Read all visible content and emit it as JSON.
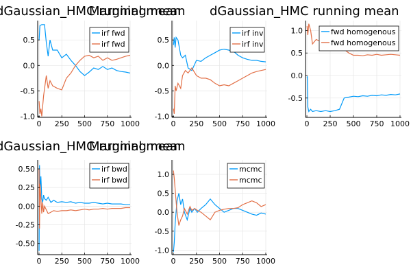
{
  "colors": {
    "series1": "#009af9",
    "series2": "#e26f46",
    "grid": "#e6e6e6",
    "axis": "#000000"
  },
  "chart_data": [
    {
      "type": "line",
      "title": "dGaussian_HMC running mean",
      "xlim": [
        -15,
        1015
      ],
      "ylim": [
        -1.02,
        0.88
      ],
      "xticks": [
        0,
        250,
        500,
        750,
        1000
      ],
      "xtick_labels": [
        "0",
        "250",
        "500",
        "750",
        "1000"
      ],
      "yticks": [
        -1.0,
        -0.5,
        0.0,
        0.5
      ],
      "ytick_labels": [
        "-1.0",
        "-0.5",
        "0.0",
        "0.5"
      ],
      "legend_position": "top-right",
      "grid": true,
      "series": [
        {
          "name": "irf fwd",
          "color": "#009af9",
          "x": [
            1,
            10,
            30,
            60,
            80,
            100,
            120,
            150,
            200,
            250,
            300,
            350,
            400,
            450,
            500,
            550,
            600,
            650,
            700,
            750,
            800,
            850,
            900,
            950,
            1000
          ],
          "y": [
            0.5,
            0.78,
            0.8,
            0.8,
            0.45,
            0.18,
            0.5,
            0.3,
            0.3,
            0.15,
            0.22,
            0.1,
            0.0,
            -0.12,
            -0.2,
            -0.13,
            -0.05,
            -0.08,
            -0.02,
            -0.08,
            -0.05,
            -0.1,
            -0.12,
            -0.13,
            -0.15
          ]
        },
        {
          "name": "irf fwd",
          "color": "#e26f46",
          "x": [
            1,
            10,
            20,
            30,
            50,
            80,
            100,
            120,
            150,
            200,
            250,
            300,
            350,
            400,
            450,
            500,
            550,
            600,
            650,
            700,
            750,
            800,
            850,
            900,
            950,
            1000
          ],
          "y": [
            -0.7,
            -0.95,
            -0.85,
            -1.0,
            -0.6,
            -0.2,
            -0.45,
            -0.3,
            -0.4,
            -0.45,
            -0.48,
            -0.25,
            -0.15,
            0.0,
            0.1,
            0.18,
            0.2,
            0.15,
            0.18,
            0.1,
            0.15,
            0.1,
            0.12,
            0.15,
            0.18,
            0.2
          ]
        }
      ]
    },
    {
      "type": "line",
      "title": "Marginal mean",
      "xlim": [
        -15,
        1015
      ],
      "ylim": [
        -1.02,
        0.88
      ],
      "xticks": [
        0,
        250,
        500,
        750,
        1000
      ],
      "xtick_labels": [
        "0",
        "250",
        "500",
        "750",
        "1000"
      ],
      "yticks": [
        -1.0,
        -0.5,
        0.0,
        0.5
      ],
      "ytick_labels": [
        "-1.0",
        "-0.5",
        "0.0",
        "0.5"
      ],
      "legend_position": "top-right",
      "grid": true,
      "series": [
        {
          "name": "irf inv",
          "color": "#009af9",
          "x": [
            1,
            10,
            20,
            30,
            50,
            80,
            100,
            130,
            160,
            200,
            250,
            300,
            350,
            400,
            450,
            500,
            550,
            600,
            650,
            700,
            750,
            800,
            850,
            900,
            950,
            1000
          ],
          "y": [
            0.4,
            0.55,
            0.35,
            0.55,
            0.5,
            0.2,
            0.15,
            0.2,
            -0.05,
            -0.1,
            0.1,
            0.08,
            0.15,
            0.2,
            0.25,
            0.3,
            0.32,
            0.3,
            0.28,
            0.2,
            0.15,
            0.12,
            0.1,
            0.1,
            0.08,
            0.07
          ]
        },
        {
          "name": "irf inv",
          "color": "#e26f46",
          "x": [
            1,
            10,
            20,
            30,
            50,
            80,
            100,
            130,
            160,
            200,
            250,
            300,
            350,
            400,
            450,
            500,
            550,
            600,
            650,
            700,
            750,
            800,
            850,
            900,
            950,
            1000
          ],
          "y": [
            -0.85,
            -0.95,
            -0.4,
            -0.5,
            -0.35,
            -0.45,
            -0.2,
            -0.1,
            -0.15,
            -0.05,
            -0.2,
            -0.25,
            -0.25,
            -0.28,
            -0.35,
            -0.4,
            -0.38,
            -0.4,
            -0.35,
            -0.3,
            -0.25,
            -0.2,
            -0.15,
            -0.12,
            -0.1,
            -0.08
          ]
        }
      ]
    },
    {
      "type": "line",
      "title": "dGaussian_HMC running mean",
      "xlim": [
        -15,
        1015
      ],
      "ylim": [
        -0.93,
        1.22
      ],
      "xticks": [
        0,
        250,
        500,
        750,
        1000
      ],
      "xtick_labels": [
        "0",
        "250",
        "500",
        "750",
        "1000"
      ],
      "yticks": [
        -0.5,
        0.0,
        0.5,
        1.0
      ],
      "ytick_labels": [
        "-0.5",
        "0.0",
        "0.5",
        "1.0"
      ],
      "legend_position": "top-right",
      "grid": true,
      "series": [
        {
          "name": "fwd homogenous",
          "color": "#009af9",
          "x": [
            1,
            5,
            10,
            20,
            40,
            60,
            100,
            150,
            200,
            250,
            300,
            350,
            400,
            450,
            500,
            550,
            600,
            650,
            700,
            750,
            800,
            850,
            900,
            950,
            1000
          ],
          "y": [
            -0.05,
            -0.02,
            -0.7,
            -0.8,
            -0.75,
            -0.8,
            -0.78,
            -0.8,
            -0.78,
            -0.8,
            -0.78,
            -0.75,
            -0.5,
            -0.48,
            -0.46,
            -0.47,
            -0.45,
            -0.46,
            -0.44,
            -0.45,
            -0.43,
            -0.44,
            -0.42,
            -0.43,
            -0.41
          ]
        },
        {
          "name": "fwd homogenous",
          "color": "#e26f46",
          "x": [
            1,
            10,
            20,
            40,
            60,
            100,
            150,
            200,
            250,
            300,
            350,
            400,
            450,
            500,
            550,
            600,
            650,
            700,
            750,
            800,
            850,
            900,
            950,
            1000
          ],
          "y": [
            1.1,
            0.9,
            1.15,
            1.0,
            0.7,
            0.8,
            0.75,
            0.72,
            0.7,
            0.65,
            0.6,
            0.58,
            0.5,
            0.45,
            0.45,
            0.44,
            0.46,
            0.45,
            0.47,
            0.45,
            0.46,
            0.47,
            0.46,
            0.45
          ]
        }
      ]
    },
    {
      "type": "line",
      "title": "dGaussian_HMC running mean",
      "xlim": [
        -15,
        1015
      ],
      "ylim": [
        -0.65,
        0.62
      ],
      "xticks": [
        0,
        250,
        500,
        750,
        1000
      ],
      "xtick_labels": [
        "0",
        "250",
        "500",
        "750",
        "1000"
      ],
      "yticks": [
        -0.5,
        -0.25,
        0.0,
        0.25,
        0.5
      ],
      "ytick_labels": [
        "-0.50",
        "-0.25",
        "0.00",
        "0.25",
        "0.50"
      ],
      "legend_position": "top-right",
      "grid": true,
      "series": [
        {
          "name": "irf bwd",
          "color": "#009af9",
          "x": [
            1,
            5,
            10,
            20,
            30,
            40,
            50,
            60,
            80,
            100,
            130,
            160,
            200,
            250,
            300,
            350,
            400,
            450,
            500,
            550,
            600,
            650,
            700,
            750,
            800,
            850,
            900,
            950,
            1000
          ],
          "y": [
            -0.6,
            0.55,
            0.2,
            0.4,
            0.1,
            0.05,
            0.15,
            0.1,
            0.08,
            0.12,
            0.05,
            0.08,
            0.05,
            0.06,
            0.05,
            0.06,
            0.04,
            0.05,
            0.04,
            0.04,
            0.05,
            0.04,
            0.03,
            0.04,
            0.03,
            0.03,
            0.03,
            0.02,
            0.02
          ]
        },
        {
          "name": "irf bwd",
          "color": "#e26f46",
          "x": [
            1,
            5,
            10,
            20,
            30,
            40,
            50,
            60,
            80,
            100,
            130,
            160,
            200,
            250,
            300,
            350,
            400,
            450,
            500,
            550,
            600,
            650,
            700,
            750,
            800,
            850,
            900,
            950,
            1000
          ],
          "y": [
            0.5,
            -0.3,
            0.3,
            0.1,
            -0.1,
            0.05,
            -0.08,
            0.0,
            -0.05,
            -0.1,
            -0.08,
            -0.06,
            -0.07,
            -0.06,
            -0.06,
            -0.05,
            -0.06,
            -0.05,
            -0.04,
            -0.05,
            -0.04,
            -0.04,
            -0.03,
            -0.04,
            -0.03,
            -0.03,
            -0.03,
            -0.02,
            -0.02
          ]
        }
      ]
    },
    {
      "type": "line",
      "title": "Marginal mean",
      "xlim": [
        -15,
        1015
      ],
      "ylim": [
        -1.12,
        1.38
      ],
      "xticks": [
        0,
        250,
        500,
        750,
        1000
      ],
      "xtick_labels": [
        "0",
        "250",
        "500",
        "750",
        "1000"
      ],
      "yticks": [
        -1.0,
        -0.5,
        0.0,
        0.5,
        1.0
      ],
      "ytick_labels": [
        "-1.0",
        "-0.5",
        "0.0",
        "0.5",
        "1.0"
      ],
      "legend_position": "top-right",
      "grid": true,
      "series": [
        {
          "name": "mcmc",
          "color": "#009af9",
          "x": [
            1,
            10,
            20,
            40,
            60,
            80,
            100,
            120,
            150,
            180,
            200,
            230,
            260,
            300,
            350,
            400,
            450,
            500,
            550,
            600,
            650,
            700,
            750,
            800,
            850,
            900,
            950,
            1000
          ],
          "y": [
            -1.05,
            -0.8,
            -0.3,
            0.3,
            0.5,
            0.2,
            0.35,
            0.0,
            -0.2,
            0.1,
            0.0,
            0.1,
            0.0,
            0.1,
            0.2,
            0.35,
            0.2,
            0.1,
            0.0,
            0.05,
            0.1,
            0.1,
            0.05,
            0.0,
            -0.05,
            -0.08,
            -0.02,
            -0.05
          ]
        },
        {
          "name": "mcmc",
          "color": "#e26f46",
          "x": [
            1,
            10,
            20,
            40,
            60,
            80,
            100,
            120,
            150,
            180,
            200,
            230,
            260,
            300,
            350,
            400,
            450,
            500,
            550,
            600,
            650,
            700,
            750,
            800,
            850,
            900,
            950,
            1000
          ],
          "y": [
            1.1,
            0.9,
            0.6,
            0.0,
            -0.35,
            -0.2,
            -0.1,
            0.1,
            -0.05,
            0.15,
            0.05,
            0.1,
            0.05,
            0.0,
            -0.1,
            -0.2,
            0.0,
            0.05,
            0.08,
            0.1,
            0.1,
            0.12,
            0.2,
            0.25,
            0.3,
            0.25,
            0.15,
            0.2
          ]
        }
      ]
    }
  ]
}
